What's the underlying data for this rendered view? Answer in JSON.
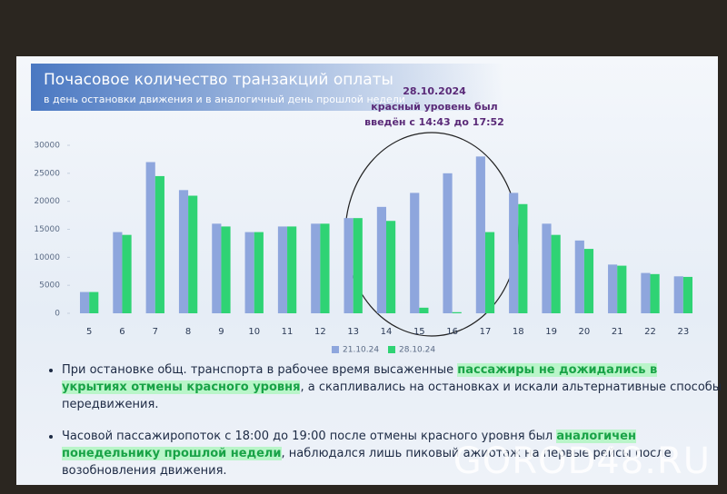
{
  "chart_data": {
    "type": "bar",
    "title": "Почасовое количество транзакций оплаты",
    "subtitle": "в день остановки движения и в аналогичный день прошлой недели",
    "annotation": [
      "28.10.2024",
      "красный уровень был",
      "введён с 14:43 до 17:52"
    ],
    "categories": [
      "5",
      "6",
      "7",
      "8",
      "9",
      "10",
      "11",
      "12",
      "13",
      "14",
      "15",
      "16",
      "17",
      "18",
      "19",
      "20",
      "21",
      "22",
      "23"
    ],
    "series": [
      {
        "name": "21.10.24",
        "color": "#8ea6dd",
        "values": [
          3800,
          14500,
          27000,
          22000,
          16000,
          14500,
          15500,
          16000,
          17000,
          19000,
          21500,
          25000,
          28000,
          21500,
          16000,
          13000,
          8700,
          7200,
          6600
        ]
      },
      {
        "name": "28.10.24",
        "color": "#2fd374",
        "values": [
          3800,
          14000,
          24500,
          21000,
          15500,
          14500,
          15500,
          16000,
          17000,
          16500,
          1000,
          200,
          14500,
          19500,
          14000,
          11500,
          8500,
          7000,
          6500
        ]
      }
    ],
    "ylim": [
      0,
      30000
    ],
    "yticks": [
      0,
      5000,
      10000,
      15000,
      20000,
      25000,
      30000
    ],
    "grid": false,
    "legend": "bottom"
  },
  "bullets": [
    [
      {
        "text": "При остановке общ. транспорта в рабочее время высаженные ",
        "highlight": false
      },
      {
        "text": "пассажиры не дожидались в укрытиях отмены красного уровня",
        "highlight": true
      },
      {
        "text": ", а скапливались на остановках и искали альтернативные способы передвижения.",
        "highlight": false
      }
    ],
    [
      {
        "text": "Часовой пассажиропоток с 18:00 до 19:00 после отмены красного уровня был ",
        "highlight": false
      },
      {
        "text": "аналогичен понедельнику прошлой недели",
        "highlight": true
      },
      {
        "text": ", наблюдался лишь пиковый ажиотаж на первые рейсы после возобновления движения.",
        "highlight": false
      }
    ]
  ],
  "watermark": "GOROD48.RU"
}
